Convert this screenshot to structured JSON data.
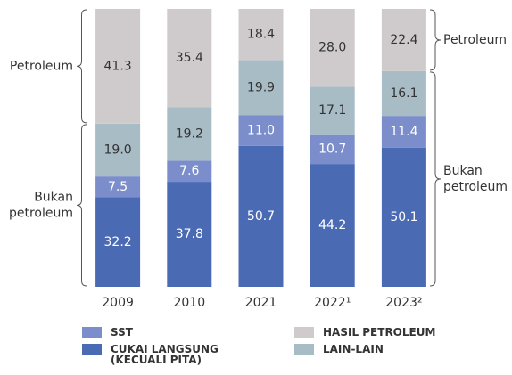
{
  "chart_data": {
    "type": "stacked_bar",
    "categories": [
      "2009",
      "2010",
      "2021",
      "2022¹",
      "2023²"
    ],
    "ylim": [
      0,
      100
    ],
    "series": [
      {
        "name": "CUKAI LANGSUNG (KECUALI PITA)",
        "color": "#4a6ab4",
        "label_color": "#ffffff",
        "values": [
          32.2,
          37.8,
          50.7,
          44.2,
          50.1
        ],
        "value_labels": [
          "32.2",
          "37.8",
          "50.7",
          "44.2",
          "50.1"
        ]
      },
      {
        "name": "SST",
        "color": "#7b8ecb",
        "label_color": "#ffffff",
        "values": [
          7.5,
          7.6,
          11.0,
          10.7,
          11.4
        ],
        "value_labels": [
          "7.5",
          "7.6",
          "11.0",
          "10.7",
          "11.4"
        ]
      },
      {
        "name": "LAIN-LAIN",
        "color": "#a8bcc6",
        "label_color": "#333333",
        "values": [
          19.0,
          19.2,
          19.9,
          17.1,
          16.1
        ],
        "value_labels": [
          "19.0",
          "19.2",
          "19.9",
          "17.1",
          "16.1"
        ]
      },
      {
        "name": "HASIL PETROLEUM",
        "color": "#cfcbcd",
        "label_color": "#333333",
        "values": [
          41.3,
          35.4,
          18.4,
          28.0,
          22.4
        ],
        "value_labels": [
          "41.3",
          "35.4",
          "18.4",
          "28.0",
          "22.4"
        ]
      }
    ],
    "annotations": {
      "left": [
        {
          "lines": [
            "Petroleum"
          ]
        },
        {
          "lines": [
            "Bukan",
            "petroleum"
          ]
        }
      ],
      "right": [
        {
          "lines": [
            "Petroleum"
          ]
        },
        {
          "lines": [
            "Bukan",
            "petroleum"
          ]
        }
      ]
    }
  }
}
